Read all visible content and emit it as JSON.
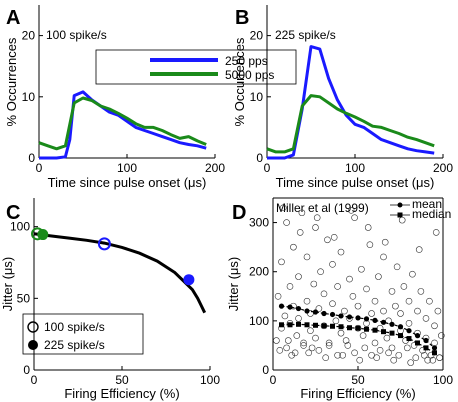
{
  "panels": {
    "A": {
      "letter": "A",
      "annotation": "100 spike/s"
    },
    "B": {
      "letter": "B",
      "annotation": "225 spike/s"
    },
    "C": {
      "letter": "C"
    },
    "D": {
      "letter": "D",
      "annotation": "Miller et al (1999)"
    }
  },
  "chart_data": [
    {
      "id": "A",
      "type": "line",
      "xlabel": "Time since pulse onset (μs)",
      "ylabel": "% Occurrences",
      "xlim": [
        0,
        200
      ],
      "ylim": [
        0,
        25
      ],
      "xticks": [
        0,
        100,
        200
      ],
      "yticks": [
        0,
        10,
        20
      ],
      "legend": "top-right",
      "colors": [
        "#1a1aff",
        "#1a8a1a"
      ],
      "series": [
        {
          "name": "250 pps",
          "color": "#1a1aff",
          "x": [
            0,
            10,
            20,
            30,
            35,
            40,
            50,
            60,
            70,
            80,
            90,
            100,
            110,
            120,
            130,
            140,
            150,
            160,
            170,
            180,
            190
          ],
          "y": [
            0,
            0,
            0,
            0.2,
            3,
            10.2,
            10.8,
            9.5,
            8.5,
            7.5,
            7,
            6,
            5,
            4.5,
            4,
            3.5,
            3,
            2.5,
            2.2,
            2,
            1.6
          ]
        },
        {
          "name": "5000 pps",
          "color": "#1a8a1a",
          "x": [
            0,
            10,
            20,
            30,
            40,
            50,
            60,
            70,
            80,
            90,
            100,
            110,
            120,
            130,
            140,
            150,
            160,
            170,
            180,
            190
          ],
          "y": [
            2.5,
            2,
            1.5,
            2,
            9,
            9.8,
            9.4,
            8.5,
            8,
            7.3,
            6.5,
            5.6,
            5,
            5,
            4.5,
            3.8,
            3.2,
            3.5,
            2.8,
            2.2
          ]
        }
      ]
    },
    {
      "id": "B",
      "type": "line",
      "xlabel": "Time since pulse onset (μs)",
      "ylabel": "% Occurrences",
      "xlim": [
        0,
        200
      ],
      "ylim": [
        0,
        25
      ],
      "xticks": [
        0,
        100,
        200
      ],
      "yticks": [
        0,
        10,
        20
      ],
      "series": [
        {
          "name": "250 pps",
          "color": "#1a1aff",
          "x": [
            0,
            10,
            20,
            30,
            40,
            50,
            60,
            70,
            80,
            90,
            100,
            110,
            120,
            130,
            140,
            150,
            160,
            170,
            180,
            190
          ],
          "y": [
            0,
            0,
            0,
            0.5,
            8,
            18.2,
            17.8,
            13,
            9.5,
            7,
            5.5,
            5,
            4,
            3,
            2.5,
            2,
            1.5,
            1.2,
            1,
            0.8
          ]
        },
        {
          "name": "5000 pps",
          "color": "#1a8a1a",
          "x": [
            0,
            10,
            20,
            30,
            40,
            50,
            60,
            70,
            80,
            90,
            100,
            110,
            120,
            130,
            140,
            150,
            160,
            170,
            180,
            190
          ],
          "y": [
            1.5,
            1,
            1,
            1.5,
            8.5,
            10.2,
            10,
            9,
            8,
            7.3,
            6.7,
            6,
            5.2,
            5,
            4.5,
            4,
            3.4,
            3,
            2.5,
            2
          ]
        }
      ]
    },
    {
      "id": "C",
      "type": "scatter",
      "xlabel": "Firing Efficiency (%)",
      "ylabel": "Jitter (μs)",
      "xlim": [
        0,
        100
      ],
      "ylim": [
        0,
        120
      ],
      "xticks": [
        0,
        50,
        100
      ],
      "yticks": [
        0,
        50,
        100
      ],
      "legend": "bottom-left",
      "curve": {
        "color": "#000000",
        "x": [
          0,
          10,
          20,
          30,
          40,
          50,
          60,
          70,
          80,
          85,
          90,
          93,
          95,
          97
        ],
        "y": [
          95,
          93.5,
          92,
          90.5,
          88.5,
          85.5,
          81.5,
          76,
          68,
          62,
          56,
          50,
          45,
          40
        ]
      },
      "series": [
        {
          "name": "100 spike/s",
          "marker": "open-circle",
          "colors": [
            "#1a8a1a",
            "#1a1aff"
          ],
          "x": [
            2,
            40
          ],
          "y": [
            95,
            88
          ]
        },
        {
          "name": "225 spike/s",
          "marker": "filled-circle",
          "colors": [
            "#1a8a1a",
            "#1a1aff"
          ],
          "x": [
            5,
            88
          ],
          "y": [
            94.5,
            63
          ]
        }
      ]
    },
    {
      "id": "D",
      "type": "scatter",
      "xlabel": "Firing Efficiency (%)",
      "ylabel": "Jitter (μs)",
      "xlim": [
        0,
        100
      ],
      "ylim": [
        0,
        350
      ],
      "xticks": [
        0,
        50,
        100
      ],
      "yticks": [
        0,
        100,
        200,
        300
      ],
      "legend": "top-right",
      "series": [
        {
          "name": "mean",
          "marker": "filled-circle",
          "x": [
            5,
            10,
            15,
            20,
            25,
            30,
            35,
            40,
            45,
            50,
            55,
            60,
            65,
            70,
            75,
            80,
            85,
            90,
            95
          ],
          "y": [
            130,
            128,
            125,
            120,
            118,
            115,
            113,
            110,
            108,
            106,
            104,
            101,
            97,
            93,
            88,
            80,
            70,
            60,
            45
          ]
        },
        {
          "name": "median",
          "marker": "filled-square",
          "x": [
            5,
            10,
            15,
            20,
            25,
            30,
            35,
            40,
            45,
            50,
            55,
            60,
            65,
            70,
            75,
            80,
            85,
            90,
            95
          ],
          "y": [
            92,
            92,
            93,
            92,
            91,
            90,
            89,
            88,
            86,
            85,
            83,
            81,
            78,
            75,
            70,
            64,
            55,
            45,
            35
          ]
        },
        {
          "name": "",
          "marker": "open-circle",
          "x": [
            2,
            3,
            5,
            5,
            7,
            8,
            8,
            10,
            10,
            12,
            12,
            14,
            15,
            15,
            17,
            18,
            20,
            20,
            22,
            22,
            24,
            25,
            25,
            27,
            28,
            30,
            30,
            32,
            33,
            35,
            35,
            37,
            38,
            40,
            40,
            42,
            43,
            45,
            45,
            47,
            48,
            50,
            50,
            52,
            53,
            55,
            55,
            57,
            58,
            60,
            60,
            62,
            63,
            65,
            65,
            67,
            68,
            70,
            70,
            72,
            73,
            75,
            75,
            77,
            78,
            80,
            80,
            82,
            83,
            85,
            85,
            87,
            88,
            90,
            90,
            92,
            93,
            95,
            95,
            97,
            98,
            99,
            4,
            9,
            13,
            18,
            23,
            27,
            33,
            38,
            44,
            48,
            54,
            58,
            63,
            68,
            74,
            79,
            84,
            89,
            94,
            98,
            6,
            16,
            26,
            36,
            46,
            56,
            66,
            76,
            86,
            96,
            11,
            21,
            31,
            41,
            51,
            61,
            71,
            81,
            91
          ],
          "y": [
            60,
            150,
            220,
            85,
            110,
            300,
            45,
            170,
            95,
            130,
            250,
            70,
            190,
            105,
            320,
            55,
            140,
            230,
            80,
            115,
            175,
            290,
            65,
            125,
            200,
            90,
            155,
            265,
            50,
            135,
            215,
            100,
            170,
            75,
            240,
            120,
            60,
            185,
            105,
            150,
            310,
            85,
            130,
            205,
            70,
            165,
            95,
            255,
            115,
            55,
            140,
            190,
            85,
            120,
            230,
            65,
            100,
            160,
            45,
            130,
            210,
            80,
            115,
            170,
            60,
            140,
            95,
            195,
            50,
            120,
            75,
            160,
            40,
            105,
            65,
            140,
            30,
            90,
            55,
            120,
            25,
            70,
            40,
            60,
            35,
            50,
            45,
            40,
            55,
            30,
            50,
            35,
            45,
            30,
            40,
            35,
            30,
            45,
            25,
            30,
            20,
            25,
            330,
            280,
            310,
            270,
            325,
            290,
            260,
            305,
            245,
            280,
            30,
            35,
            25,
            30,
            20,
            25,
            20,
            15,
            20
          ]
        }
      ]
    }
  ]
}
